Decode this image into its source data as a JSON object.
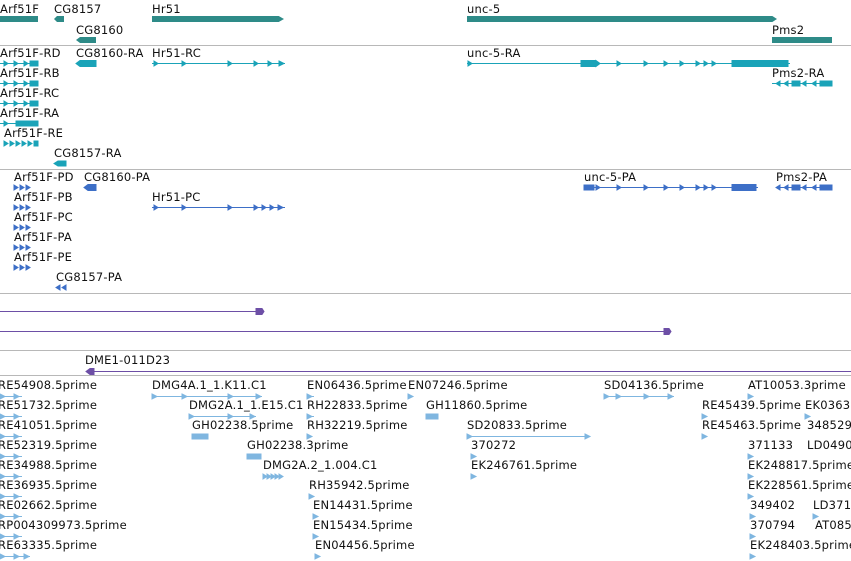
{
  "colors": {
    "gene": "#2e8b88",
    "transcript": "#1aa3b8",
    "protein": "#3d6fc7",
    "alignment": "#6d4fa6",
    "est": "#7fb6e0"
  },
  "genes": [
    {
      "label": "Arf51F"
    },
    {
      "label": "CG8157"
    },
    {
      "label": "Hr51"
    },
    {
      "label": "unc-5"
    },
    {
      "label": "CG8160"
    },
    {
      "label": "Pms2"
    }
  ],
  "transcripts": [
    {
      "label": "Arf51F-RD"
    },
    {
      "label": "CG8160-RA"
    },
    {
      "label": "Hr51-RC"
    },
    {
      "label": "unc-5-RA"
    },
    {
      "label": "Arf51F-RB"
    },
    {
      "label": "Pms2-RA"
    },
    {
      "label": "Arf51F-RC"
    },
    {
      "label": "Arf51F-RA"
    },
    {
      "label": "Arf51F-RE"
    },
    {
      "label": "CG8157-RA"
    }
  ],
  "proteins": [
    {
      "label": "Arf51F-PD"
    },
    {
      "label": "CG8160-PA"
    },
    {
      "label": "unc-5-PA"
    },
    {
      "label": "Pms2-PA"
    },
    {
      "label": "Arf51F-PB"
    },
    {
      "label": "Hr51-PC"
    },
    {
      "label": "Arf51F-PC"
    },
    {
      "label": "Arf51F-PA"
    },
    {
      "label": "Arf51F-PE"
    },
    {
      "label": "CG8157-PA"
    }
  ],
  "alignment": {
    "label": "DME1-011D23"
  },
  "ests": [
    {
      "label": "RE54908.5prime"
    },
    {
      "label": "DMG4A.1_1.K11.C1"
    },
    {
      "label": "EN06436.5prime"
    },
    {
      "label": "EN07246.5prime"
    },
    {
      "label": "SD04136.5prime"
    },
    {
      "label": "AT10053.3prime"
    },
    {
      "label": "RE51732.5prime"
    },
    {
      "label": "DMG2A.1_1.E15.C1"
    },
    {
      "label": "RH22833.5prime"
    },
    {
      "label": "GH11860.5prime"
    },
    {
      "label": "RE45439.5prime"
    },
    {
      "label": "EK0363"
    },
    {
      "label": "RE41051.5prime"
    },
    {
      "label": "GH02238.5prime"
    },
    {
      "label": "RH32219.5prime"
    },
    {
      "label": "SD20833.5prime"
    },
    {
      "label": "RE45463.5prime"
    },
    {
      "label": "348529"
    },
    {
      "label": "RE52319.5prime"
    },
    {
      "label": "GH02238.3prime"
    },
    {
      "label": "370272"
    },
    {
      "label": "371133"
    },
    {
      "label": "LD0490"
    },
    {
      "label": "RE34988.5prime"
    },
    {
      "label": "DMG2A.2_1.004.C1"
    },
    {
      "label": "EK246761.5prime"
    },
    {
      "label": "EK248817.5prime"
    },
    {
      "label": "RE36935.5prime"
    },
    {
      "label": "RH35942.5prime"
    },
    {
      "label": "EK228561.5prime"
    },
    {
      "label": "RE02662.5prime"
    },
    {
      "label": "EN14431.5prime"
    },
    {
      "label": "349402"
    },
    {
      "label": "LD371"
    },
    {
      "label": "RP004309973.5prime"
    },
    {
      "label": "EN15434.5prime"
    },
    {
      "label": "370794"
    },
    {
      "label": "AT085"
    },
    {
      "label": "RE63335.5prime"
    },
    {
      "label": "EN04456.5prime"
    },
    {
      "label": "EK248403.5prime"
    }
  ]
}
